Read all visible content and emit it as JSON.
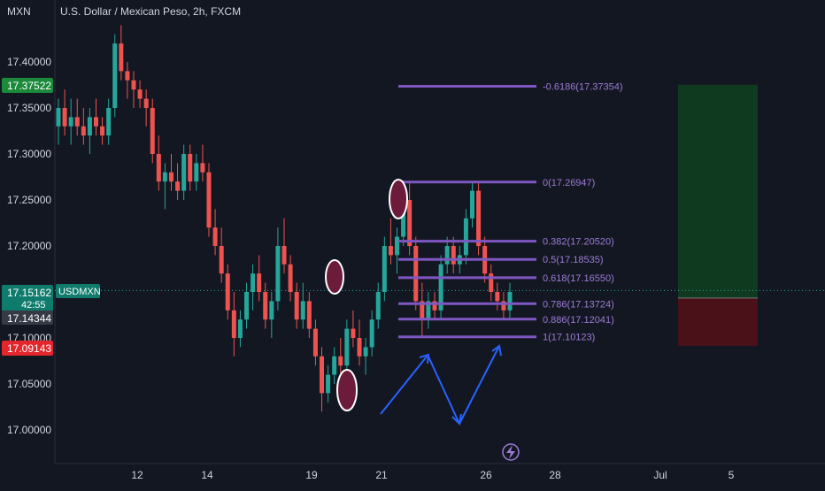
{
  "header": {
    "axis_unit": "MXN",
    "title": "U.S. Dollar / Mexican Peso, 2h, FXCM"
  },
  "colors": {
    "background": "#131722",
    "up": "#26a69a",
    "down": "#ef5350",
    "fib": "#7e57c2",
    "arrow": "#2962ff",
    "ellipse_fill": "#6d1b3b",
    "target_zone": "#0f3a20",
    "stop_zone": "#4a1218"
  },
  "price_badges": [
    {
      "label": "17.37522",
      "kind": "green"
    },
    {
      "label": "17.15162",
      "kind": "teal"
    },
    {
      "label": "42:55",
      "kind": "teal_sub"
    },
    {
      "label": "17.14344",
      "kind": "gray"
    },
    {
      "label": "17.09143",
      "kind": "red"
    }
  ],
  "symbol_tag": "USDMXN",
  "chart_data": {
    "type": "candlestick",
    "title": "U.S. Dollar / Mexican Peso, 2h, FXCM",
    "y_ticks": [
      "17.40000",
      "17.35000",
      "17.30000",
      "17.25000",
      "17.20000",
      "17.10000",
      "17.05000",
      "17.00000"
    ],
    "x_ticks": [
      "12",
      "14",
      "19",
      "21",
      "26",
      "28",
      "Jul",
      "5"
    ],
    "ylim": [
      16.96,
      17.47
    ],
    "current_price": 17.15162,
    "grid": false,
    "candles": [
      {
        "o": 17.33,
        "h": 17.36,
        "l": 17.31,
        "c": 17.35
      },
      {
        "o": 17.35,
        "h": 17.37,
        "l": 17.32,
        "c": 17.33
      },
      {
        "o": 17.33,
        "h": 17.36,
        "l": 17.31,
        "c": 17.34
      },
      {
        "o": 17.34,
        "h": 17.36,
        "l": 17.32,
        "c": 17.33
      },
      {
        "o": 17.33,
        "h": 17.35,
        "l": 17.31,
        "c": 17.32
      },
      {
        "o": 17.32,
        "h": 17.35,
        "l": 17.3,
        "c": 17.34
      },
      {
        "o": 17.34,
        "h": 17.36,
        "l": 17.32,
        "c": 17.33
      },
      {
        "o": 17.33,
        "h": 17.34,
        "l": 17.31,
        "c": 17.32
      },
      {
        "o": 17.32,
        "h": 17.36,
        "l": 17.31,
        "c": 17.35
      },
      {
        "o": 17.35,
        "h": 17.43,
        "l": 17.34,
        "c": 17.42
      },
      {
        "o": 17.42,
        "h": 17.44,
        "l": 17.38,
        "c": 17.39
      },
      {
        "o": 17.39,
        "h": 17.4,
        "l": 17.36,
        "c": 17.38
      },
      {
        "o": 17.38,
        "h": 17.39,
        "l": 17.35,
        "c": 17.37
      },
      {
        "o": 17.37,
        "h": 17.38,
        "l": 17.35,
        "c": 17.36
      },
      {
        "o": 17.36,
        "h": 17.37,
        "l": 17.33,
        "c": 17.35
      },
      {
        "o": 17.35,
        "h": 17.36,
        "l": 17.29,
        "c": 17.3
      },
      {
        "o": 17.3,
        "h": 17.32,
        "l": 17.26,
        "c": 17.27
      },
      {
        "o": 17.27,
        "h": 17.29,
        "l": 17.24,
        "c": 17.28
      },
      {
        "o": 17.28,
        "h": 17.3,
        "l": 17.26,
        "c": 17.27
      },
      {
        "o": 17.27,
        "h": 17.29,
        "l": 17.25,
        "c": 17.26
      },
      {
        "o": 17.26,
        "h": 17.31,
        "l": 17.25,
        "c": 17.3
      },
      {
        "o": 17.3,
        "h": 17.31,
        "l": 17.26,
        "c": 17.27
      },
      {
        "o": 17.27,
        "h": 17.3,
        "l": 17.26,
        "c": 17.29
      },
      {
        "o": 17.29,
        "h": 17.31,
        "l": 17.27,
        "c": 17.28
      },
      {
        "o": 17.28,
        "h": 17.29,
        "l": 17.21,
        "c": 17.22
      },
      {
        "o": 17.22,
        "h": 17.24,
        "l": 17.19,
        "c": 17.2
      },
      {
        "o": 17.2,
        "h": 17.22,
        "l": 17.16,
        "c": 17.17
      },
      {
        "o": 17.17,
        "h": 17.18,
        "l": 17.12,
        "c": 17.13
      },
      {
        "o": 17.13,
        "h": 17.15,
        "l": 17.08,
        "c": 17.1
      },
      {
        "o": 17.1,
        "h": 17.13,
        "l": 17.09,
        "c": 17.12
      },
      {
        "o": 17.12,
        "h": 17.16,
        "l": 17.11,
        "c": 17.15
      },
      {
        "o": 17.15,
        "h": 17.18,
        "l": 17.13,
        "c": 17.17
      },
      {
        "o": 17.17,
        "h": 17.19,
        "l": 17.14,
        "c": 17.15
      },
      {
        "o": 17.15,
        "h": 17.16,
        "l": 17.11,
        "c": 17.12
      },
      {
        "o": 17.12,
        "h": 17.15,
        "l": 17.1,
        "c": 17.14
      },
      {
        "o": 17.14,
        "h": 17.22,
        "l": 17.13,
        "c": 17.2
      },
      {
        "o": 17.2,
        "h": 17.23,
        "l": 17.17,
        "c": 17.18
      },
      {
        "o": 17.18,
        "h": 17.19,
        "l": 17.14,
        "c": 17.15
      },
      {
        "o": 17.15,
        "h": 17.16,
        "l": 17.11,
        "c": 17.12
      },
      {
        "o": 17.12,
        "h": 17.16,
        "l": 17.11,
        "c": 17.14
      },
      {
        "o": 17.14,
        "h": 17.15,
        "l": 17.1,
        "c": 17.11
      },
      {
        "o": 17.11,
        "h": 17.12,
        "l": 17.07,
        "c": 17.08
      },
      {
        "o": 17.08,
        "h": 17.09,
        "l": 17.02,
        "c": 17.04
      },
      {
        "o": 17.04,
        "h": 17.07,
        "l": 17.03,
        "c": 17.06
      },
      {
        "o": 17.06,
        "h": 17.09,
        "l": 17.05,
        "c": 17.08
      },
      {
        "o": 17.08,
        "h": 17.1,
        "l": 17.06,
        "c": 17.07
      },
      {
        "o": 17.07,
        "h": 17.12,
        "l": 17.06,
        "c": 17.11
      },
      {
        "o": 17.11,
        "h": 17.13,
        "l": 17.09,
        "c": 17.1
      },
      {
        "o": 17.1,
        "h": 17.12,
        "l": 17.07,
        "c": 17.08
      },
      {
        "o": 17.08,
        "h": 17.1,
        "l": 17.06,
        "c": 17.09
      },
      {
        "o": 17.09,
        "h": 17.13,
        "l": 17.08,
        "c": 17.12
      },
      {
        "o": 17.12,
        "h": 17.16,
        "l": 17.11,
        "c": 17.15
      },
      {
        "o": 17.15,
        "h": 17.21,
        "l": 17.14,
        "c": 17.2
      },
      {
        "o": 17.2,
        "h": 17.23,
        "l": 17.18,
        "c": 17.19
      },
      {
        "o": 17.19,
        "h": 17.22,
        "l": 17.17,
        "c": 17.21
      },
      {
        "o": 17.21,
        "h": 17.26,
        "l": 17.2,
        "c": 17.25
      },
      {
        "o": 17.25,
        "h": 17.27,
        "l": 17.19,
        "c": 17.2
      },
      {
        "o": 17.2,
        "h": 17.21,
        "l": 17.13,
        "c": 17.14
      },
      {
        "o": 17.14,
        "h": 17.16,
        "l": 17.1,
        "c": 17.12
      },
      {
        "o": 17.12,
        "h": 17.15,
        "l": 17.11,
        "c": 17.14
      },
      {
        "o": 17.14,
        "h": 17.15,
        "l": 17.12,
        "c": 17.13
      },
      {
        "o": 17.13,
        "h": 17.19,
        "l": 17.12,
        "c": 17.18
      },
      {
        "o": 17.18,
        "h": 17.21,
        "l": 17.17,
        "c": 17.2
      },
      {
        "o": 17.2,
        "h": 17.21,
        "l": 17.17,
        "c": 17.18
      },
      {
        "o": 17.18,
        "h": 17.2,
        "l": 17.17,
        "c": 17.19
      },
      {
        "o": 17.19,
        "h": 17.24,
        "l": 17.18,
        "c": 17.23
      },
      {
        "o": 17.23,
        "h": 17.27,
        "l": 17.22,
        "c": 17.26
      },
      {
        "o": 17.26,
        "h": 17.27,
        "l": 17.19,
        "c": 17.2
      },
      {
        "o": 17.2,
        "h": 17.21,
        "l": 17.16,
        "c": 17.17
      },
      {
        "o": 17.17,
        "h": 17.18,
        "l": 17.14,
        "c": 17.15
      },
      {
        "o": 17.15,
        "h": 17.16,
        "l": 17.13,
        "c": 17.14
      },
      {
        "o": 17.14,
        "h": 17.15,
        "l": 17.12,
        "c": 17.13
      },
      {
        "o": 17.13,
        "h": 17.16,
        "l": 17.12,
        "c": 17.15
      }
    ],
    "fibonacci": [
      {
        "label": "-0.6186(17.37354)",
        "price": 17.37354
      },
      {
        "label": "0(17.26947)",
        "price": 17.26947
      },
      {
        "label": "0.382(17.20520)",
        "price": 17.2052
      },
      {
        "label": "0.5(17.18535)",
        "price": 17.18535
      },
      {
        "label": "0.618(17.16550)",
        "price": 17.1655
      },
      {
        "label": "0.786(17.13724)",
        "price": 17.13724
      },
      {
        "label": "0.886(17.12041)",
        "price": 17.12041
      },
      {
        "label": "1(17.10123)",
        "price": 17.10123
      }
    ],
    "position": {
      "entry": 17.14344,
      "target": 17.37522,
      "stop": 17.09143
    }
  }
}
